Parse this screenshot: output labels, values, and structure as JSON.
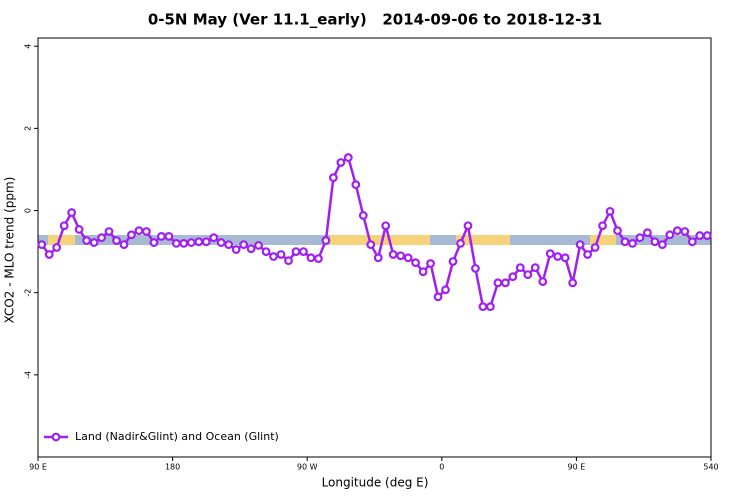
{
  "chart_data": {
    "type": "line",
    "title": "0-5N May (Ver 11.1_early)   2014-09-06 to 2018-12-31",
    "x_label": "Longitude (deg E)",
    "y_label": "XCO2 - MLO trend (ppm)",
    "x": [
      92.5,
      97.5,
      102.5,
      107.5,
      112.5,
      117.5,
      122.5,
      127.5,
      132.5,
      137.5,
      142.5,
      147.5,
      152.5,
      157.5,
      162.5,
      167.5,
      172.5,
      177.5,
      182.5,
      187.5,
      192.5,
      197.5,
      202.5,
      207.5,
      212.5,
      217.5,
      222.5,
      227.5,
      232.5,
      237.5,
      242.5,
      247.5,
      252.5,
      257.5,
      262.5,
      267.5,
      272.5,
      277.5,
      282.5,
      287.5,
      292.5,
      297.5,
      302.5,
      307.5,
      312.5,
      317.5,
      322.5,
      327.5,
      332.5,
      337.5,
      342.5,
      347.5,
      352.5,
      357.5,
      362.5,
      367.5,
      372.5,
      377.5,
      382.5,
      387.5,
      392.5,
      397.5,
      402.5,
      407.5,
      412.5,
      417.5,
      422.5,
      427.5,
      432.5,
      437.5,
      442.5,
      447.5,
      452.5,
      457.5,
      462.5,
      467.5,
      472.5,
      477.5,
      482.5,
      487.5,
      492.5,
      497.5,
      502.5,
      507.5,
      512.5,
      517.5,
      522.5,
      527.5,
      532.5,
      537.5
    ],
    "series": [
      {
        "name": "Land (Nadir&Glint) and Ocean (Glint)",
        "color": "#a020f0",
        "values": [
          -0.83,
          -1.07,
          -0.9,
          -0.37,
          -0.05,
          -0.46,
          -0.73,
          -0.78,
          -0.66,
          -0.51,
          -0.73,
          -0.83,
          -0.59,
          -0.49,
          -0.51,
          -0.78,
          -0.63,
          -0.63,
          -0.8,
          -0.8,
          -0.78,
          -0.76,
          -0.76,
          -0.66,
          -0.78,
          -0.83,
          -0.95,
          -0.83,
          -0.93,
          -0.85,
          -1.0,
          -1.12,
          -1.07,
          -1.22,
          -1.0,
          -1.0,
          -1.15,
          -1.17,
          -0.73,
          0.8,
          1.17,
          1.29,
          0.63,
          -0.12,
          -0.83,
          -1.15,
          -0.37,
          -1.07,
          -1.1,
          -1.15,
          -1.27,
          -1.49,
          -1.29,
          -2.1,
          -1.93,
          -1.24,
          -0.8,
          -0.37,
          -1.41,
          -2.34,
          -2.34,
          -1.76,
          -1.76,
          -1.61,
          -1.39,
          -1.56,
          -1.39,
          -1.73,
          -1.05,
          -1.12,
          -1.15,
          -1.76,
          -0.83,
          -1.07,
          -0.9,
          -0.37,
          -0.02,
          -0.49,
          -0.76,
          -0.8,
          -0.66,
          -0.54,
          -0.76,
          -0.83,
          -0.59,
          -0.49,
          -0.51,
          -0.76,
          -0.61,
          -0.61
        ]
      }
    ],
    "xlim": [
      90,
      540
    ],
    "xticks": [
      {
        "value": 90,
        "label": "90 E"
      },
      180,
      {
        "value": 270,
        "label": "90 W"
      },
      {
        "value": 360,
        "label": "0"
      },
      {
        "value": 450,
        "label": "90 E"
      },
      540
    ],
    "ylim": [
      -6,
      4.2
    ],
    "yticks": [
      -4,
      -2,
      0,
      2,
      4
    ],
    "legend": "bottomleft"
  }
}
